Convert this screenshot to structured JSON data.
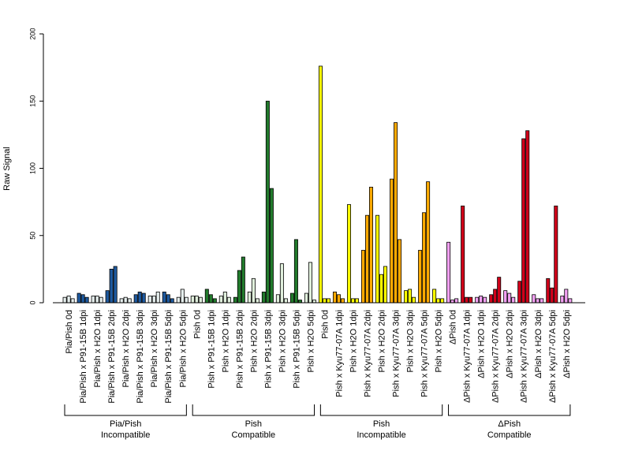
{
  "chart_data": {
    "type": "bar",
    "ylabel": "Raw Signal",
    "ylim": [
      0,
      200
    ],
    "yticks": [
      0,
      50,
      100,
      150,
      200
    ],
    "bars_per_category": 3,
    "categories": [
      "Pia/Pish 0d",
      "Pia/Pish x P91-15B 1dpi",
      "Pia/Pish x H2O 1dpi",
      "Pia/Pish x P91-15B 2dpi",
      "Pia/Pish x H2O 2dpi",
      "Pia/Pish x P91-15B 3dpi",
      "Pia/Pish x H2O 3dpi",
      "Pia/Pish x P91-15B 5dpi",
      "Pia/Pish x H2O 5dpi",
      "Pish 0d",
      "Pish x P91-15B 1dpi",
      "Pish x H2O 1dpi",
      "Pish x P91-15B 2dpi",
      "Pish x H2O 2dpi",
      "Pish x P91-15B 3dpi",
      "Pish x H2O 3dpi",
      "Pish x P91-15B 5dpi",
      "Pish x H2O 5dpi",
      "Pish 0d",
      "Pish x Kyu77-07A 1dpi",
      "Pish x H2O 1dpi",
      "Pish x Kyu77-07A 2dpi",
      "Pish x H2O 2dpi",
      "Pish x Kyu77-07A 3dpi",
      "Pish x H2O 3dpi",
      "Pish x Kyu77-07A 5dpi",
      "Pish x H2O 5dpi",
      "ΔPish 0d",
      "ΔPish x Kyu77-07A 1dpi",
      "ΔPish x H2O 1dpi",
      "ΔPish x Kyu77-07A 2dpi",
      "ΔPish x H2O 2dpi",
      "ΔPish x Kyu77-07A 3dpi",
      "ΔPish x H2O 3dpi",
      "ΔPish x Kyu77-07A 5dpi",
      "ΔPish x H2O 5dpi"
    ],
    "values": [
      [
        4,
        5,
        3
      ],
      [
        7,
        6,
        4
      ],
      [
        5,
        5,
        4
      ],
      [
        9,
        25,
        27
      ],
      [
        3,
        4,
        3
      ],
      [
        6,
        8,
        7
      ],
      [
        5,
        5,
        8
      ],
      [
        8,
        6,
        3
      ],
      [
        4,
        10,
        4
      ],
      [
        5,
        5,
        4
      ],
      [
        10,
        6,
        3
      ],
      [
        5,
        8,
        4
      ],
      [
        4,
        24,
        34
      ],
      [
        8,
        18,
        3
      ],
      [
        8,
        150,
        85
      ],
      [
        6,
        29,
        3
      ],
      [
        7,
        47,
        2
      ],
      [
        7,
        30,
        2
      ],
      [
        176,
        3,
        3
      ],
      [
        8,
        6,
        3
      ],
      [
        73,
        3,
        3
      ],
      [
        39,
        65,
        86
      ],
      [
        65,
        21,
        27
      ],
      [
        92,
        134,
        47
      ],
      [
        9,
        10,
        4
      ],
      [
        39,
        67,
        90
      ],
      [
        10,
        3,
        3
      ],
      [
        45,
        2,
        3
      ],
      [
        72,
        4,
        4
      ],
      [
        4,
        5,
        4
      ],
      [
        6,
        10,
        19
      ],
      [
        9,
        7,
        4
      ],
      [
        16,
        122,
        128
      ],
      [
        6,
        3,
        3
      ],
      [
        18,
        11,
        72
      ],
      [
        5,
        10,
        3
      ]
    ],
    "colors": [
      "#e6efee",
      "#1e5aa0",
      "#e6efee",
      "#1e5aa0",
      "#e6efee",
      "#1e5aa0",
      "#e6efee",
      "#1e5aa0",
      "#e6efee",
      "#e0efdc",
      "#227a2c",
      "#e0efdc",
      "#227a2c",
      "#e0efdc",
      "#227a2c",
      "#e0efdc",
      "#227a2c",
      "#e0efdc",
      "#ffff00",
      "#ffaa00",
      "#ffff00",
      "#ffaa00",
      "#ffff00",
      "#ffaa00",
      "#ffff00",
      "#ffaa00",
      "#ffff00",
      "#f2a0f2",
      "#d0001a",
      "#f2a0f2",
      "#d0001a",
      "#f2a0f2",
      "#d0001a",
      "#f2a0f2",
      "#d0001a",
      "#f2a0f2"
    ],
    "groups": [
      {
        "line1": "Pia/Pish",
        "line2": "Incompatible",
        "start": 0,
        "end": 8
      },
      {
        "line1": "Pish",
        "line2": "Compatible",
        "start": 9,
        "end": 17
      },
      {
        "line1": "Pish",
        "line2": "Incompatible",
        "start": 18,
        "end": 26
      },
      {
        "line1": "ΔPish",
        "line2": "Compatible",
        "start": 27,
        "end": 35
      }
    ]
  }
}
